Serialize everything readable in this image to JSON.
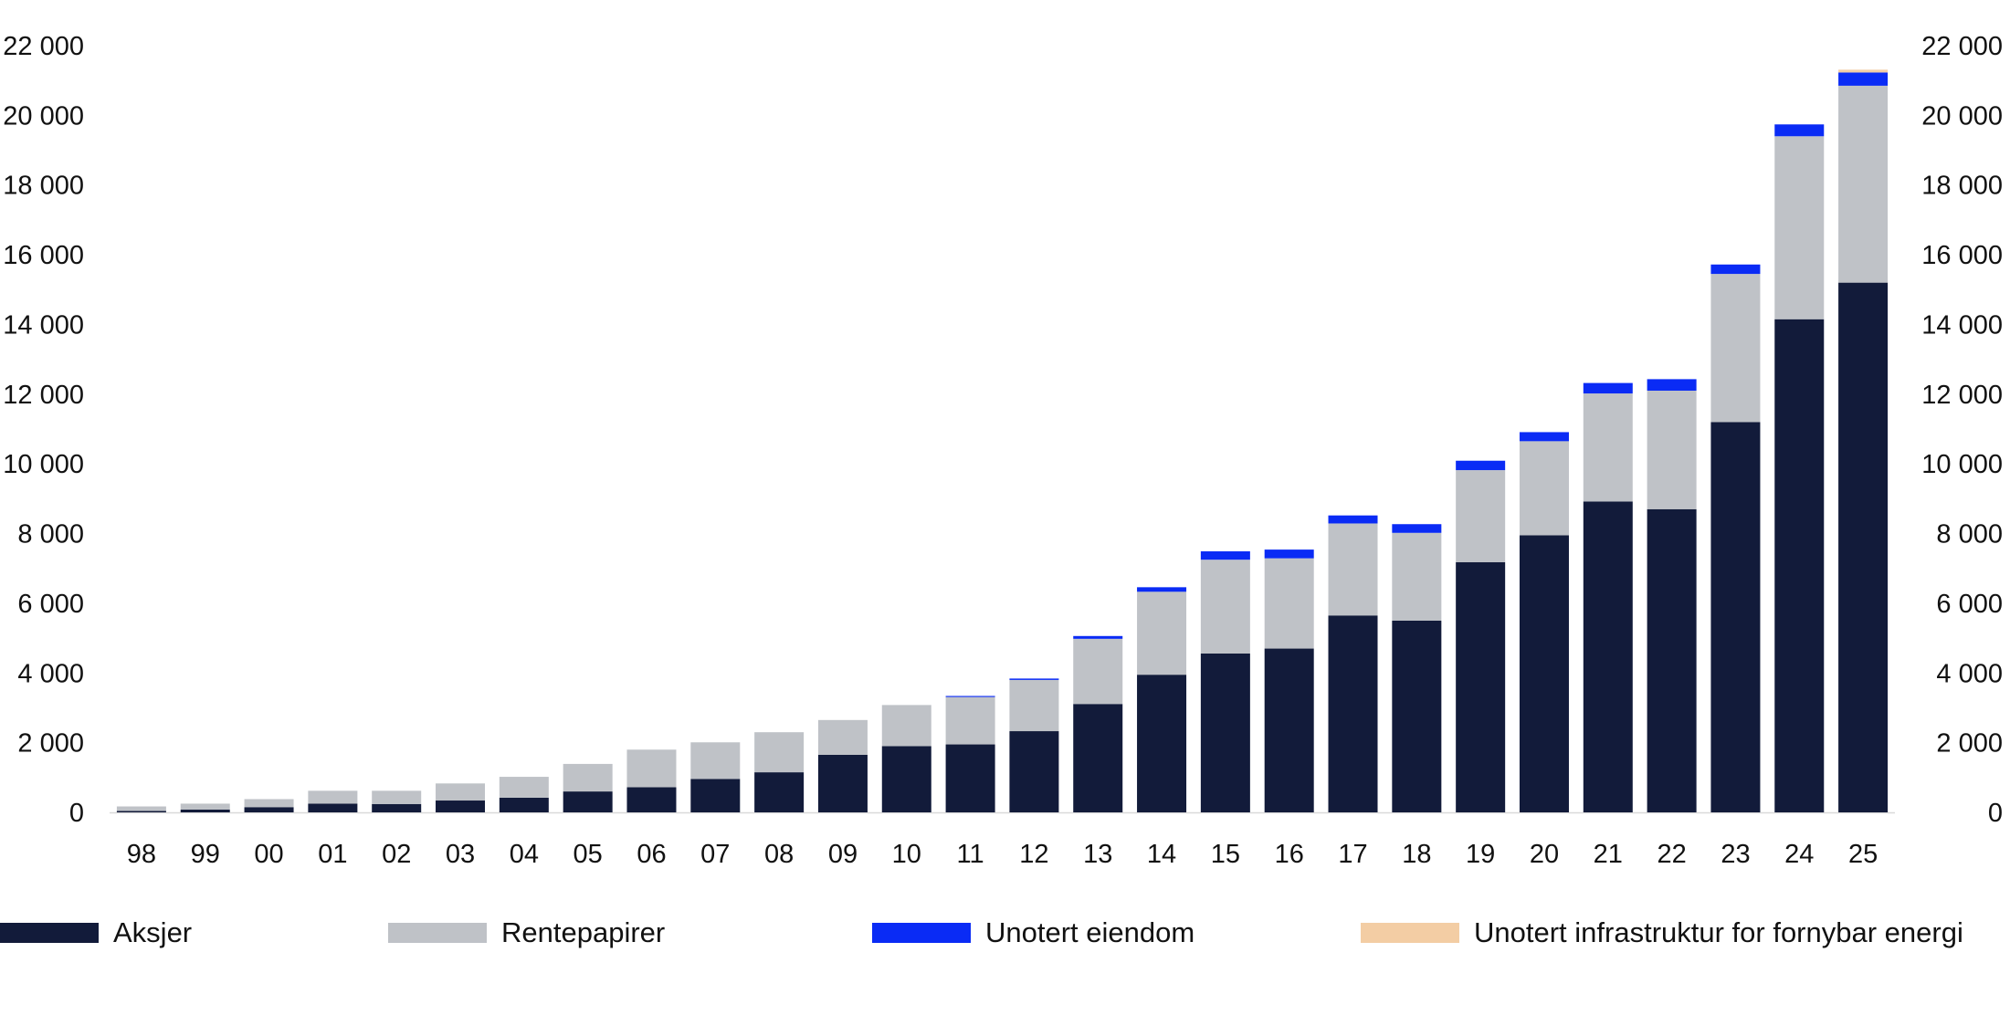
{
  "chart_data": {
    "type": "bar",
    "stacked": true,
    "categories": [
      "98",
      "99",
      "00",
      "01",
      "02",
      "03",
      "04",
      "05",
      "06",
      "07",
      "08",
      "09",
      "10",
      "11",
      "12",
      "13",
      "14",
      "15",
      "16",
      "17",
      "18",
      "19",
      "20",
      "21",
      "22",
      "23",
      "24",
      "25"
    ],
    "series": [
      {
        "name": "Aksjer",
        "color": "#121b3a",
        "values": [
          40,
          80,
          150,
          250,
          240,
          340,
          420,
          600,
          720,
          960,
          1150,
          1650,
          1900,
          1950,
          2330,
          3110,
          3950,
          4560,
          4700,
          5650,
          5500,
          7180,
          7950,
          8920,
          8700,
          11200,
          14150,
          15200
        ]
      },
      {
        "name": "Rentepapirer",
        "color": "#bfc2c7",
        "values": [
          130,
          170,
          230,
          370,
          380,
          490,
          600,
          790,
          1080,
          1050,
          1150,
          1000,
          1180,
          1360,
          1470,
          1870,
          2380,
          2690,
          2590,
          2640,
          2520,
          2640,
          2700,
          3100,
          3400,
          4250,
          5250,
          5650
        ]
      },
      {
        "name": "Unotert eiendom",
        "color": "#0a2bf5",
        "values": [
          0,
          0,
          0,
          0,
          0,
          0,
          0,
          0,
          0,
          0,
          0,
          0,
          0,
          30,
          40,
          80,
          130,
          240,
          250,
          230,
          250,
          270,
          260,
          300,
          330,
          270,
          340,
          380
        ]
      },
      {
        "name": "Unotert infrastruktur for fornybar energi",
        "color": "#f3cda4",
        "values": [
          0,
          0,
          0,
          0,
          0,
          0,
          0,
          0,
          0,
          0,
          0,
          0,
          0,
          0,
          0,
          0,
          0,
          0,
          0,
          0,
          0,
          0,
          0,
          0,
          0,
          0,
          0,
          80
        ]
      }
    ],
    "y_ticks": [
      "0",
      "2 000",
      "4 000",
      "6 000",
      "8 000",
      "10 000",
      "12 000",
      "14 000",
      "16 000",
      "18 000",
      "20 000",
      "22 000"
    ],
    "ylim": [
      0,
      22000
    ],
    "y_axis_both_sides": true,
    "grid": false,
    "legend_position": "bottom",
    "title": "",
    "xlabel": "",
    "ylabel": ""
  }
}
